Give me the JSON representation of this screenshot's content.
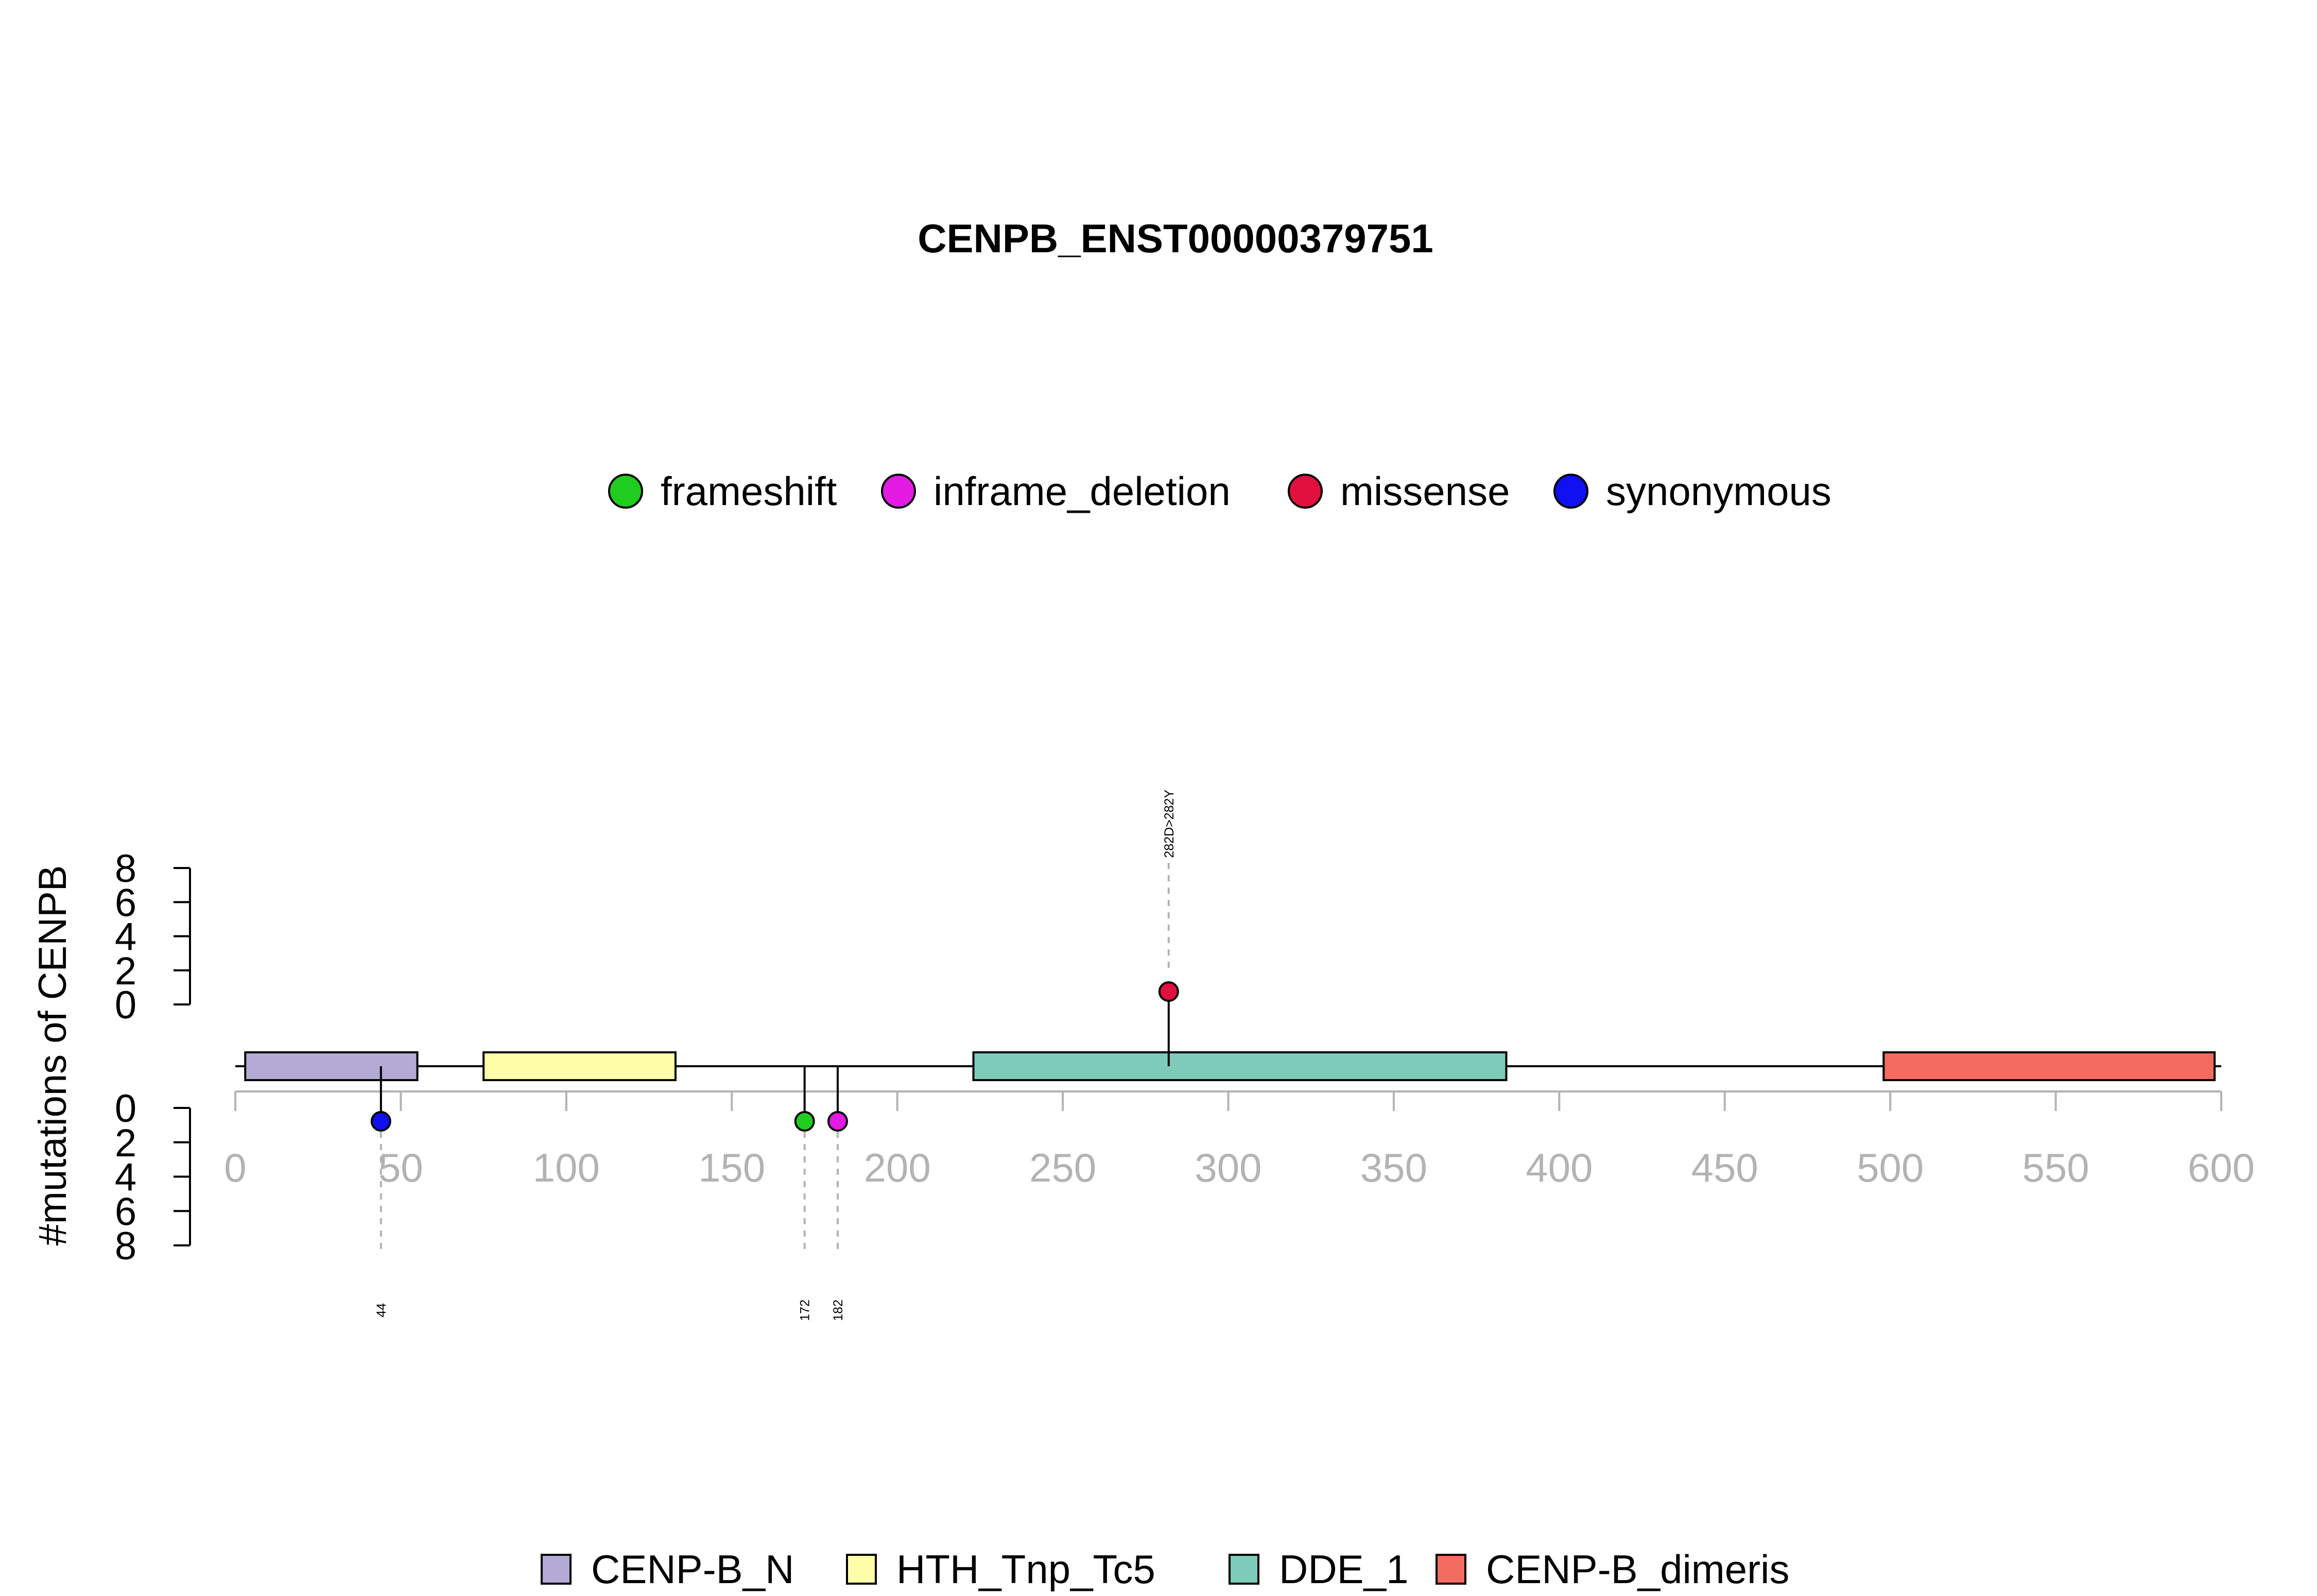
{
  "chart_data": {
    "type": "lollipop",
    "title": "CENPB_ENST00000379751",
    "ylabel": "#mutations of CENPB",
    "x_range": [
      0,
      600
    ],
    "x_ticks": [
      0,
      50,
      100,
      150,
      200,
      250,
      300,
      350,
      400,
      450,
      500,
      550,
      600
    ],
    "y_ticks": [
      0,
      2,
      4,
      6,
      8
    ],
    "y_range": [
      0,
      8
    ],
    "mutation_legend": [
      {
        "label": "frameshift",
        "color": "#1fcc1f"
      },
      {
        "label": "inframe_deletion",
        "color": "#e21ae2"
      },
      {
        "label": "missense",
        "color": "#e0103f"
      },
      {
        "label": "synonymous",
        "color": "#1010f0"
      }
    ],
    "domains": [
      {
        "name": "CENP-B_N",
        "start": 3,
        "end": 55,
        "color": "#b3abd3"
      },
      {
        "name": "HTH_Tnp_Tc5",
        "start": 75,
        "end": 133,
        "color": "#fefea9"
      },
      {
        "name": "DDE_1",
        "start": 223,
        "end": 384,
        "color": "#7dcbb8"
      },
      {
        "name": "CENP-B_dimeris",
        "start": 498,
        "end": 598,
        "color": "#f46c5f"
      }
    ],
    "mutations": [
      {
        "position": 282,
        "count": 1,
        "type": "missense",
        "label": "282D>282Y",
        "side": "top"
      },
      {
        "position": 44,
        "count": 1,
        "type": "synonymous",
        "label": "44",
        "side": "bottom"
      },
      {
        "position": 172,
        "count": 1,
        "type": "frameshift",
        "label": "172",
        "side": "bottom"
      },
      {
        "position": 182,
        "count": 1,
        "type": "inframe_deletion",
        "label": "182",
        "side": "bottom"
      }
    ],
    "grid": false,
    "mutation_legend_position": "top-center",
    "domain_legend_position": "bottom-center"
  }
}
